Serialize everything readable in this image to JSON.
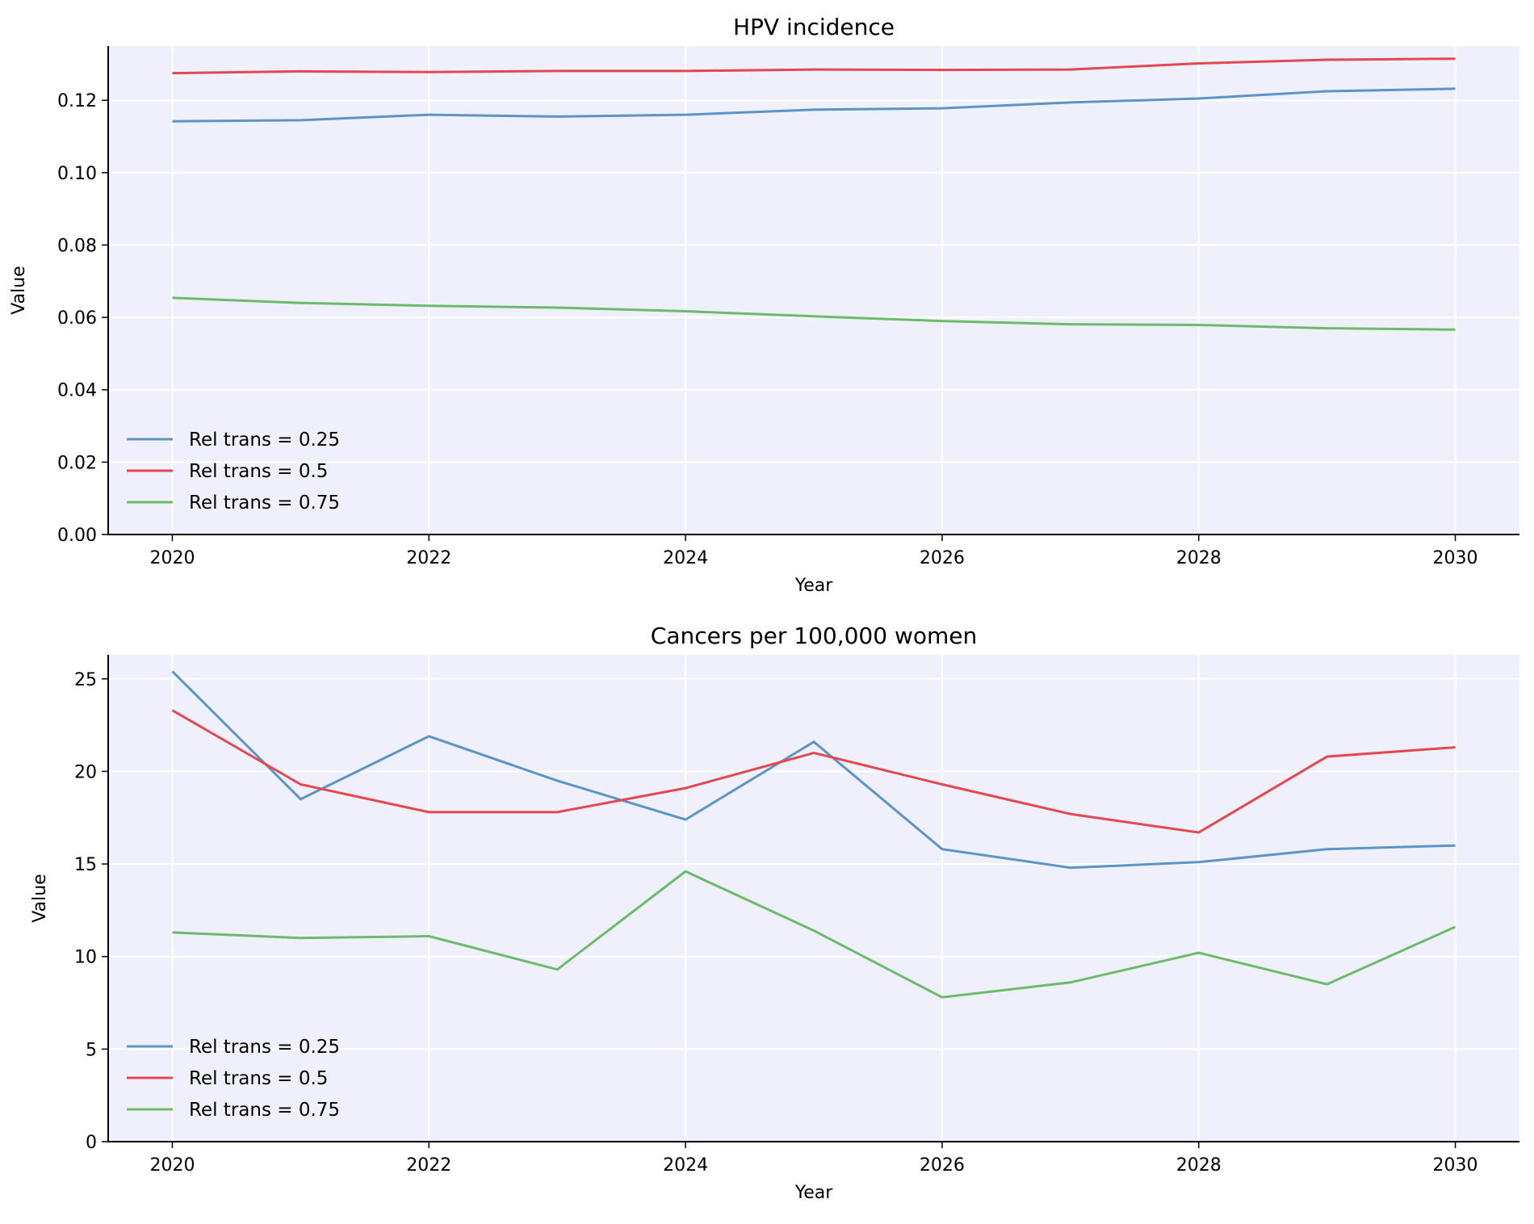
{
  "colors": {
    "plot_bg": "#f0f0fc",
    "grid": "#ffffff",
    "series": [
      "#5b95c6",
      "#e3474f",
      "#6abb6a"
    ]
  },
  "chart_data": [
    {
      "type": "line",
      "title": "HPV incidence",
      "xlabel": "Year",
      "ylabel": "Value",
      "x": [
        2020,
        2021,
        2022,
        2023,
        2024,
        2025,
        2026,
        2027,
        2028,
        2029,
        2030
      ],
      "xlim": [
        2019.5,
        2030.5
      ],
      "ylim": [
        0,
        0.135
      ],
      "xticks": [
        2020,
        2022,
        2024,
        2026,
        2028,
        2030
      ],
      "xtick_labels": [
        "2020",
        "2022",
        "2024",
        "2026",
        "2028",
        "2030"
      ],
      "yticks": [
        0,
        0.02,
        0.04,
        0.06,
        0.08,
        0.1,
        0.12
      ],
      "ytick_labels": [
        "0.00",
        "0.02",
        "0.04",
        "0.06",
        "0.08",
        "0.10",
        "0.12"
      ],
      "grid": true,
      "legend_position": "lower-left",
      "series": [
        {
          "name": "Rel trans = 0.25",
          "values": [
            0.1142,
            0.1145,
            0.116,
            0.1155,
            0.116,
            0.1174,
            0.1178,
            0.1194,
            0.1205,
            0.1225,
            0.1232
          ]
        },
        {
          "name": "Rel trans = 0.5",
          "values": [
            0.1275,
            0.128,
            0.1278,
            0.1281,
            0.1281,
            0.1285,
            0.1284,
            0.1285,
            0.1302,
            0.1312,
            0.1315
          ]
        },
        {
          "name": "Rel trans = 0.75",
          "values": [
            0.0654,
            0.064,
            0.0632,
            0.0627,
            0.0617,
            0.0603,
            0.059,
            0.0581,
            0.0579,
            0.057,
            0.0566
          ]
        }
      ]
    },
    {
      "type": "line",
      "title": "Cancers per 100,000 women",
      "xlabel": "Year",
      "ylabel": "Value",
      "x": [
        2020,
        2021,
        2022,
        2023,
        2024,
        2025,
        2026,
        2027,
        2028,
        2029,
        2030
      ],
      "xlim": [
        2019.5,
        2030.5
      ],
      "ylim": [
        0,
        26.3
      ],
      "xticks": [
        2020,
        2022,
        2024,
        2026,
        2028,
        2030
      ],
      "xtick_labels": [
        "2020",
        "2022",
        "2024",
        "2026",
        "2028",
        "2030"
      ],
      "yticks": [
        0,
        5,
        10,
        15,
        20,
        25
      ],
      "ytick_labels": [
        "0",
        "5",
        "10",
        "15",
        "20",
        "25"
      ],
      "grid": true,
      "legend_position": "lower-left",
      "series": [
        {
          "name": "Rel trans = 0.25",
          "values": [
            25.4,
            18.5,
            21.9,
            19.5,
            17.4,
            21.6,
            15.8,
            14.8,
            15.1,
            15.8,
            16.0
          ]
        },
        {
          "name": "Rel trans = 0.5",
          "values": [
            23.3,
            19.3,
            17.8,
            17.8,
            19.1,
            21.0,
            19.3,
            17.7,
            16.7,
            20.8,
            21.3
          ]
        },
        {
          "name": "Rel trans = 0.75",
          "values": [
            11.3,
            11.0,
            11.1,
            9.3,
            14.6,
            11.4,
            7.8,
            8.6,
            10.2,
            8.5,
            11.6
          ]
        }
      ]
    }
  ]
}
